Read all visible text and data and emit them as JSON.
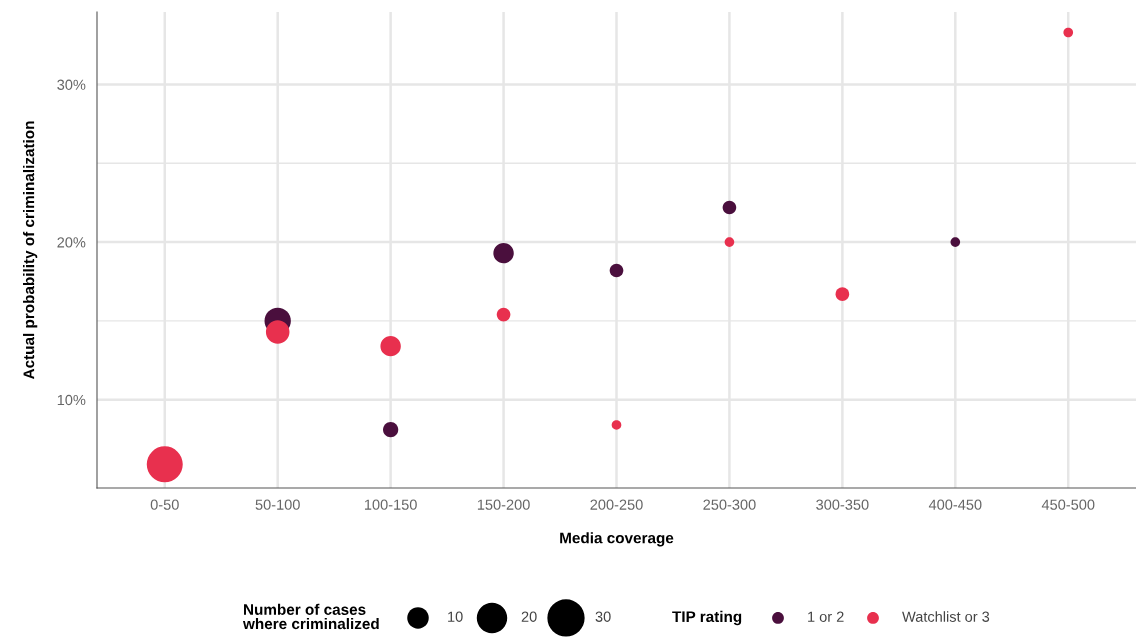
{
  "chart_data": {
    "type": "bubble",
    "xlabel": "Media coverage",
    "ylabel": "Actual probability of criminalization",
    "categories": [
      "0-50",
      "50-100",
      "100-150",
      "150-200",
      "200-250",
      "250-300",
      "300-350",
      "400-450",
      "450-500"
    ],
    "series": [
      {
        "name": "1 or 2",
        "color": "#4a0f3d",
        "values": [
          null,
          15.0,
          8.1,
          19.3,
          18.2,
          22.2,
          null,
          20.0,
          null
        ],
        "sizes": [
          null,
          15,
          5,
          9,
          4,
          4,
          null,
          2,
          null
        ]
      },
      {
        "name": "Watchlist or 3",
        "color": "#e8304e",
        "values": [
          5.9,
          14.3,
          13.4,
          15.4,
          8.4,
          20.0,
          16.7,
          null,
          33.3
        ],
        "sizes": [
          28,
          12,
          9,
          4,
          2,
          2,
          4,
          null,
          2
        ]
      }
    ],
    "size_legend": [
      10,
      20,
      30
    ],
    "legend_title": "TIP rating",
    "annotations": [
      "Number of cases\nwhere criminalized"
    ],
    "ylim": [
      4.4,
      34.6
    ],
    "yticks": [
      {
        "value": 10,
        "label": "10%"
      },
      {
        "value": 15,
        "label": null
      },
      {
        "value": 20,
        "label": "20%"
      },
      {
        "value": 25,
        "label": null
      },
      {
        "value": 30,
        "label": "30%"
      }
    ],
    "grid": true,
    "legend": "bottom",
    "marker": "circle"
  }
}
